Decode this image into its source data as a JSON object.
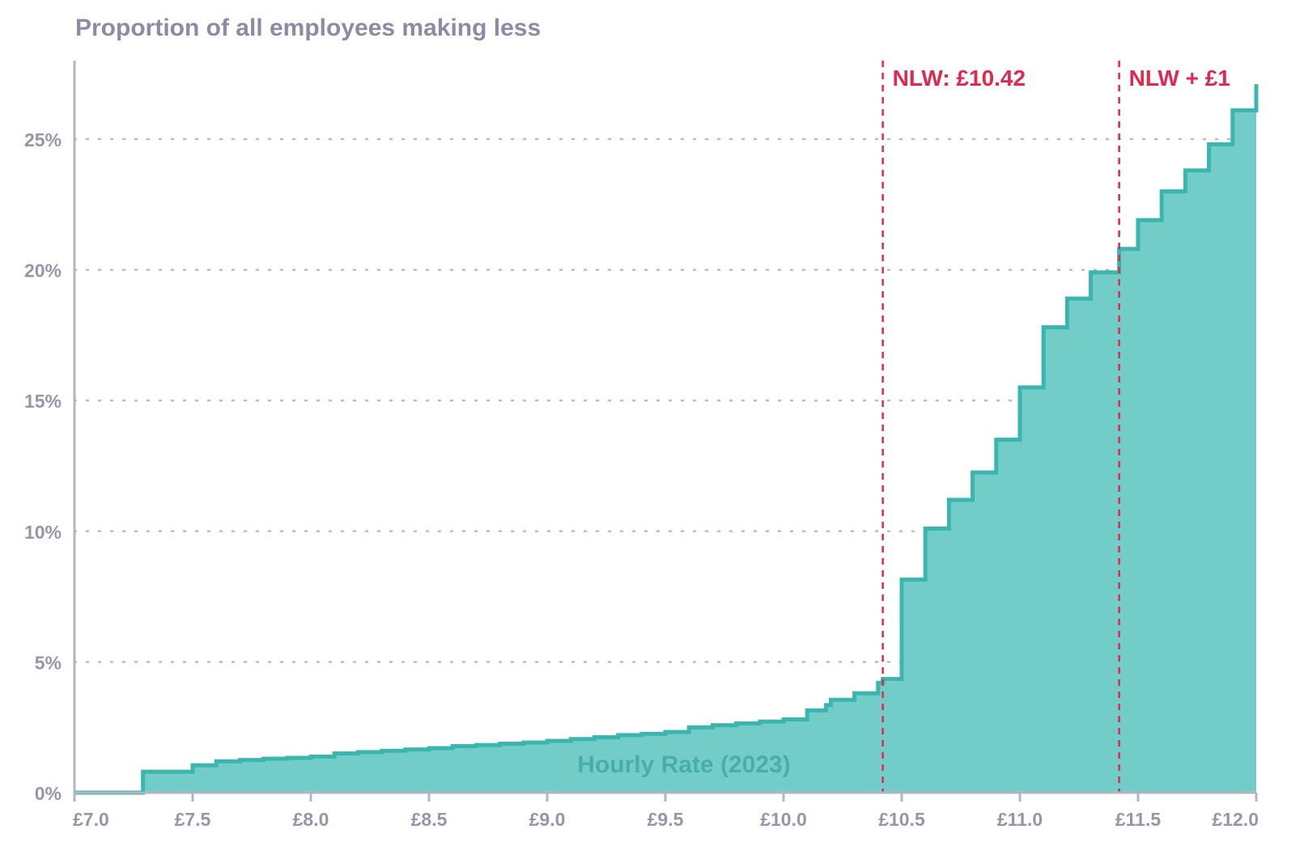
{
  "chart_data": {
    "type": "area",
    "step": true,
    "title": "Proportion of all employees making less",
    "xlabel": "Hourly Rate (2023)",
    "ylabel": "",
    "xlim": [
      7.0,
      12.0
    ],
    "ylim": [
      0,
      28
    ],
    "x_ticks": [
      {
        "value": 7.0,
        "label": "£7.0"
      },
      {
        "value": 7.5,
        "label": "£7.5"
      },
      {
        "value": 8.0,
        "label": "£8.0"
      },
      {
        "value": 8.5,
        "label": "£8.5"
      },
      {
        "value": 9.0,
        "label": "£9.0"
      },
      {
        "value": 9.5,
        "label": "£9.5"
      },
      {
        "value": 10.0,
        "label": "£10.0"
      },
      {
        "value": 10.5,
        "label": "£10.5"
      },
      {
        "value": 11.0,
        "label": "£11.0"
      },
      {
        "value": 11.5,
        "label": "£11.5"
      },
      {
        "value": 12.0,
        "label": "£12.0"
      }
    ],
    "y_ticks": [
      {
        "value": 0,
        "label": "0%"
      },
      {
        "value": 5,
        "label": "5%"
      },
      {
        "value": 10,
        "label": "10%"
      },
      {
        "value": 15,
        "label": "15%"
      },
      {
        "value": 20,
        "label": "20%"
      },
      {
        "value": 25,
        "label": "25%"
      }
    ],
    "grid": "horizontal-dotted",
    "colors": {
      "fill": "#72cdc8",
      "line": "#3bb5ae",
      "reference": "#e0294f",
      "axis": "#b4b5c4",
      "grid": "#b9bac8"
    },
    "reference_lines": [
      {
        "x": 10.42,
        "label": "NLW: £10.42"
      },
      {
        "x": 11.42,
        "label": "NLW + £1"
      }
    ],
    "x": [
      7.0,
      7.29,
      7.5,
      7.6,
      7.7,
      7.8,
      7.9,
      8.0,
      8.1,
      8.2,
      8.3,
      8.4,
      8.5,
      8.6,
      8.7,
      8.8,
      8.9,
      9.0,
      9.1,
      9.2,
      9.3,
      9.4,
      9.5,
      9.6,
      9.7,
      9.8,
      9.9,
      10.0,
      10.1,
      10.18,
      10.2,
      10.3,
      10.4,
      10.42,
      10.5,
      10.6,
      10.7,
      10.8,
      10.9,
      11.0,
      11.1,
      11.2,
      11.3,
      11.42,
      11.5,
      11.6,
      11.7,
      11.8,
      11.9,
      12.0
    ],
    "values": [
      0,
      0.8,
      1.05,
      1.2,
      1.25,
      1.3,
      1.33,
      1.38,
      1.5,
      1.55,
      1.6,
      1.65,
      1.7,
      1.78,
      1.82,
      1.87,
      1.92,
      1.98,
      2.05,
      2.12,
      2.2,
      2.25,
      2.32,
      2.5,
      2.58,
      2.65,
      2.72,
      2.8,
      3.15,
      3.35,
      3.55,
      3.8,
      4.2,
      4.35,
      8.15,
      10.1,
      11.2,
      12.25,
      13.5,
      15.5,
      17.8,
      18.9,
      19.9,
      20.8,
      21.9,
      23.0,
      23.8,
      24.8,
      26.1,
      27.1
    ]
  }
}
